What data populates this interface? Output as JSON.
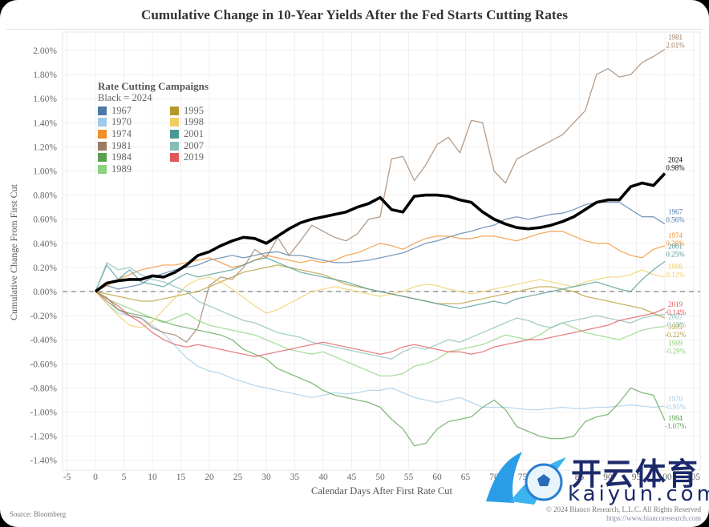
{
  "header": {
    "title": "Cumulative Change in 10-Year Yields After the Fed Starts Cutting Rates"
  },
  "legend": {
    "title": "Rate Cutting Campaigns",
    "subtitle": "Black = 2024",
    "items": [
      {
        "label": "1967",
        "color": "#4e79a7"
      },
      {
        "label": "1970",
        "color": "#a0cbe8"
      },
      {
        "label": "1974",
        "color": "#f28e2b"
      },
      {
        "label": "1981",
        "color": "#9c7b62"
      },
      {
        "label": "1984",
        "color": "#59a14f"
      },
      {
        "label": "1989",
        "color": "#8cd17d"
      },
      {
        "label": "1995",
        "color": "#b6992d"
      },
      {
        "label": "1998",
        "color": "#f1ce63"
      },
      {
        "label": "2001",
        "color": "#499894"
      },
      {
        "label": "2007",
        "color": "#86bcb6"
      },
      {
        "label": "2019",
        "color": "#e15759"
      }
    ]
  },
  "footer": {
    "source": "Source: Bloomberg",
    "copyright": "© 2024 Bianco Research, L.L.C. All Rights Reserved",
    "url": "https://www.biancoresearch.com"
  },
  "watermark": {
    "text": "开云体育",
    "url": "kaiyun.com"
  },
  "chart_data": {
    "type": "line",
    "title": "Cumulative Change in 10-Year Yields After the Fed Starts Cutting Rates",
    "xlabel": "Calendar Days After First Rate Cut",
    "ylabel": "Cumulative Change From First Cut",
    "xlim": [
      -5,
      105
    ],
    "ylim": [
      -1.45,
      2.1
    ],
    "xticks": [
      -5,
      0,
      5,
      10,
      15,
      20,
      25,
      30,
      35,
      40,
      45,
      50,
      55,
      60,
      65,
      70,
      75,
      80,
      85,
      90,
      95,
      100,
      105
    ],
    "yticks": [
      2.0,
      1.8,
      1.6,
      1.4,
      1.2,
      1.0,
      0.8,
      0.6,
      0.4,
      0.2,
      0.0,
      -0.2,
      -0.4,
      -0.6,
      -0.8,
      -1.0,
      -1.2,
      -1.4
    ],
    "ytick_labels": [
      "2.00%",
      "1.80%",
      "1.60%",
      "1.40%",
      "1.20%",
      "1.00%",
      "0.80%",
      "0.60%",
      "0.40%",
      "0.20%",
      "0.00%",
      "-0.20%",
      "-0.40%",
      "-0.60%",
      "-0.80%",
      "-1.00%",
      "-1.20%",
      "-1.40%"
    ],
    "grid": true,
    "zero_line": "dashed",
    "legend_position": "top-left",
    "x": [
      0,
      2,
      4,
      6,
      8,
      10,
      12,
      14,
      16,
      18,
      20,
      22,
      24,
      26,
      28,
      30,
      32,
      34,
      36,
      38,
      40,
      42,
      44,
      46,
      48,
      50,
      52,
      54,
      56,
      58,
      60,
      62,
      64,
      66,
      68,
      70,
      72,
      74,
      76,
      78,
      80,
      82,
      84,
      86,
      88,
      90,
      92,
      94,
      96,
      98,
      100
    ],
    "series": [
      {
        "name": "2024",
        "color": "#000000",
        "end_label": "0.98%",
        "values": [
          0,
          0.07,
          0.09,
          0.1,
          0.1,
          0.13,
          0.12,
          0.16,
          0.22,
          0.3,
          0.33,
          0.38,
          0.42,
          0.45,
          0.44,
          0.4,
          0.46,
          0.52,
          0.57,
          0.6,
          0.62,
          0.64,
          0.66,
          0.7,
          0.73,
          0.78,
          0.68,
          0.66,
          0.79,
          0.8,
          0.8,
          0.79,
          0.76,
          0.74,
          0.66,
          0.6,
          0.56,
          0.53,
          0.52,
          0.53,
          0.55,
          0.58,
          0.62,
          0.68,
          0.74,
          0.76,
          0.76,
          0.87,
          0.9,
          0.88,
          0.98
        ]
      },
      {
        "name": "1967",
        "color": "#4e79a7",
        "end_label": "0.56%",
        "values": [
          0,
          0.05,
          0.02,
          0.04,
          0.06,
          0.12,
          0.15,
          0.18,
          0.2,
          0.22,
          0.26,
          0.28,
          0.3,
          0.28,
          0.3,
          0.32,
          0.33,
          0.3,
          0.3,
          0.28,
          0.26,
          0.24,
          0.24,
          0.25,
          0.26,
          0.28,
          0.3,
          0.32,
          0.36,
          0.4,
          0.42,
          0.45,
          0.48,
          0.5,
          0.53,
          0.55,
          0.6,
          0.62,
          0.6,
          0.62,
          0.64,
          0.65,
          0.68,
          0.72,
          0.74,
          0.74,
          0.74,
          0.68,
          0.62,
          0.62,
          0.56
        ]
      },
      {
        "name": "1970",
        "color": "#a0cbe8",
        "end_label": "-0.95%",
        "values": [
          0,
          -0.1,
          -0.18,
          -0.2,
          -0.22,
          -0.28,
          -0.35,
          -0.45,
          -0.55,
          -0.62,
          -0.66,
          -0.68,
          -0.72,
          -0.75,
          -0.78,
          -0.8,
          -0.82,
          -0.84,
          -0.86,
          -0.88,
          -0.86,
          -0.84,
          -0.85,
          -0.84,
          -0.82,
          -0.82,
          -0.8,
          -0.84,
          -0.88,
          -0.9,
          -0.92,
          -0.9,
          -0.88,
          -0.92,
          -0.96,
          -0.96,
          -0.96,
          -0.97,
          -0.98,
          -0.98,
          -0.97,
          -0.96,
          -0.97,
          -0.97,
          -0.96,
          -0.96,
          -0.95,
          -0.94,
          -0.95,
          -0.96,
          -0.95
        ]
      },
      {
        "name": "1974",
        "color": "#f28e2b",
        "end_label": "0.38%",
        "values": [
          0,
          0.05,
          0.1,
          0.14,
          0.18,
          0.2,
          0.22,
          0.22,
          0.24,
          0.26,
          0.28,
          0.24,
          0.2,
          0.22,
          0.26,
          0.3,
          0.28,
          0.26,
          0.24,
          0.26,
          0.24,
          0.26,
          0.3,
          0.32,
          0.36,
          0.4,
          0.38,
          0.35,
          0.4,
          0.44,
          0.46,
          0.46,
          0.44,
          0.44,
          0.46,
          0.46,
          0.44,
          0.42,
          0.45,
          0.48,
          0.5,
          0.5,
          0.46,
          0.42,
          0.4,
          0.4,
          0.34,
          0.3,
          0.28,
          0.35,
          0.38
        ]
      },
      {
        "name": "1981",
        "color": "#9c7b62",
        "end_label": "2.01%",
        "values": [
          0,
          -0.08,
          -0.15,
          -0.2,
          -0.22,
          -0.3,
          -0.34,
          -0.36,
          -0.42,
          -0.3,
          0.05,
          0.12,
          0.1,
          0.2,
          0.35,
          0.28,
          0.45,
          0.3,
          0.42,
          0.55,
          0.5,
          0.45,
          0.42,
          0.48,
          0.6,
          0.62,
          1.1,
          1.12,
          0.92,
          1.05,
          1.22,
          1.28,
          1.15,
          1.42,
          1.4,
          1.0,
          0.9,
          1.1,
          1.15,
          1.2,
          1.25,
          1.3,
          1.4,
          1.5,
          1.8,
          1.85,
          1.78,
          1.8,
          1.9,
          1.95,
          2.01
        ]
      },
      {
        "name": "1984",
        "color": "#59a14f",
        "end_label": "-1.07%",
        "values": [
          0,
          -0.05,
          -0.15,
          -0.18,
          -0.2,
          -0.22,
          -0.25,
          -0.28,
          -0.3,
          -0.32,
          -0.34,
          -0.36,
          -0.4,
          -0.48,
          -0.52,
          -0.56,
          -0.64,
          -0.68,
          -0.72,
          -0.76,
          -0.82,
          -0.86,
          -0.88,
          -0.9,
          -0.92,
          -0.96,
          -1.06,
          -1.14,
          -1.28,
          -1.26,
          -1.14,
          -1.08,
          -1.06,
          -1.04,
          -0.96,
          -0.9,
          -0.98,
          -1.12,
          -1.16,
          -1.2,
          -1.22,
          -1.22,
          -1.2,
          -1.08,
          -1.04,
          -1.02,
          -0.92,
          -0.8,
          -0.84,
          -0.86,
          -1.07
        ]
      },
      {
        "name": "1989",
        "color": "#8cd17d",
        "end_label": "-0.29%",
        "values": [
          0,
          -0.06,
          -0.1,
          -0.14,
          -0.18,
          -0.22,
          -0.26,
          -0.22,
          -0.18,
          -0.24,
          -0.28,
          -0.3,
          -0.32,
          -0.34,
          -0.36,
          -0.4,
          -0.44,
          -0.48,
          -0.5,
          -0.52,
          -0.5,
          -0.54,
          -0.58,
          -0.62,
          -0.66,
          -0.7,
          -0.7,
          -0.68,
          -0.62,
          -0.6,
          -0.56,
          -0.5,
          -0.48,
          -0.46,
          -0.44,
          -0.4,
          -0.36,
          -0.38,
          -0.4,
          -0.36,
          -0.3,
          -0.26,
          -0.3,
          -0.34,
          -0.36,
          -0.38,
          -0.4,
          -0.36,
          -0.32,
          -0.3,
          -0.29
        ]
      },
      {
        "name": "1995",
        "color": "#b6992d",
        "end_label": "-0.22%",
        "values": [
          0,
          -0.02,
          -0.04,
          -0.06,
          -0.08,
          -0.08,
          -0.06,
          -0.04,
          -0.02,
          0.0,
          0.04,
          0.08,
          0.12,
          0.16,
          0.18,
          0.2,
          0.22,
          0.2,
          0.18,
          0.16,
          0.14,
          0.1,
          0.06,
          0.04,
          0.02,
          0.0,
          -0.02,
          -0.04,
          -0.06,
          -0.08,
          -0.1,
          -0.1,
          -0.1,
          -0.08,
          -0.06,
          -0.04,
          -0.02,
          0.0,
          0.02,
          0.04,
          0.04,
          0.02,
          0.0,
          -0.04,
          -0.06,
          -0.08,
          -0.1,
          -0.12,
          -0.14,
          -0.18,
          -0.22
        ]
      },
      {
        "name": "1998",
        "color": "#f1ce63",
        "end_label": "0.12%",
        "values": [
          0,
          -0.1,
          -0.2,
          -0.28,
          -0.3,
          -0.25,
          -0.15,
          -0.05,
          0.05,
          0.1,
          0.12,
          0.08,
          0.02,
          -0.05,
          -0.12,
          -0.18,
          -0.15,
          -0.1,
          -0.05,
          0.0,
          0.02,
          0.04,
          0.02,
          0.0,
          -0.02,
          -0.04,
          -0.02,
          0.0,
          0.04,
          0.06,
          0.05,
          0.02,
          0.0,
          -0.02,
          0.0,
          0.02,
          0.04,
          0.06,
          0.08,
          0.1,
          0.08,
          0.06,
          0.04,
          0.08,
          0.1,
          0.12,
          0.12,
          0.14,
          0.18,
          0.14,
          0.12
        ]
      },
      {
        "name": "2001",
        "color": "#499894",
        "end_label": "0.25%",
        "values": [
          0,
          0.22,
          0.1,
          0.18,
          0.08,
          0.06,
          0.04,
          0.1,
          0.15,
          0.12,
          0.14,
          0.16,
          0.18,
          0.22,
          0.26,
          0.28,
          0.24,
          0.2,
          0.16,
          0.14,
          0.12,
          0.1,
          0.08,
          0.05,
          0.02,
          0.0,
          -0.02,
          -0.04,
          -0.06,
          -0.08,
          -0.1,
          -0.12,
          -0.14,
          -0.12,
          -0.1,
          -0.08,
          -0.1,
          -0.06,
          -0.04,
          -0.02,
          0.0,
          0.02,
          0.04,
          0.06,
          0.08,
          0.05,
          0.02,
          0.0,
          0.1,
          0.18,
          0.25
        ]
      },
      {
        "name": "2007",
        "color": "#86bcb6",
        "end_label": "-0.19%",
        "values": [
          0,
          0.24,
          0.18,
          0.2,
          0.14,
          0.1,
          0.08,
          0.04,
          0.0,
          -0.08,
          -0.12,
          -0.16,
          -0.2,
          -0.24,
          -0.26,
          -0.3,
          -0.34,
          -0.36,
          -0.38,
          -0.42,
          -0.44,
          -0.46,
          -0.48,
          -0.5,
          -0.52,
          -0.54,
          -0.56,
          -0.5,
          -0.46,
          -0.48,
          -0.44,
          -0.4,
          -0.42,
          -0.38,
          -0.34,
          -0.3,
          -0.26,
          -0.22,
          -0.24,
          -0.28,
          -0.3,
          -0.26,
          -0.24,
          -0.22,
          -0.2,
          -0.22,
          -0.24,
          -0.26,
          -0.22,
          -0.2,
          -0.19
        ]
      },
      {
        "name": "2019",
        "color": "#e15759",
        "end_label": "-0.14%",
        "values": [
          0,
          -0.06,
          -0.12,
          -0.2,
          -0.26,
          -0.34,
          -0.4,
          -0.44,
          -0.46,
          -0.44,
          -0.46,
          -0.48,
          -0.5,
          -0.52,
          -0.54,
          -0.52,
          -0.5,
          -0.48,
          -0.46,
          -0.44,
          -0.42,
          -0.44,
          -0.46,
          -0.48,
          -0.5,
          -0.52,
          -0.5,
          -0.46,
          -0.44,
          -0.46,
          -0.48,
          -0.5,
          -0.5,
          -0.52,
          -0.5,
          -0.46,
          -0.44,
          -0.42,
          -0.4,
          -0.4,
          -0.38,
          -0.36,
          -0.34,
          -0.32,
          -0.3,
          -0.28,
          -0.24,
          -0.22,
          -0.2,
          -0.18,
          -0.14
        ]
      }
    ]
  }
}
